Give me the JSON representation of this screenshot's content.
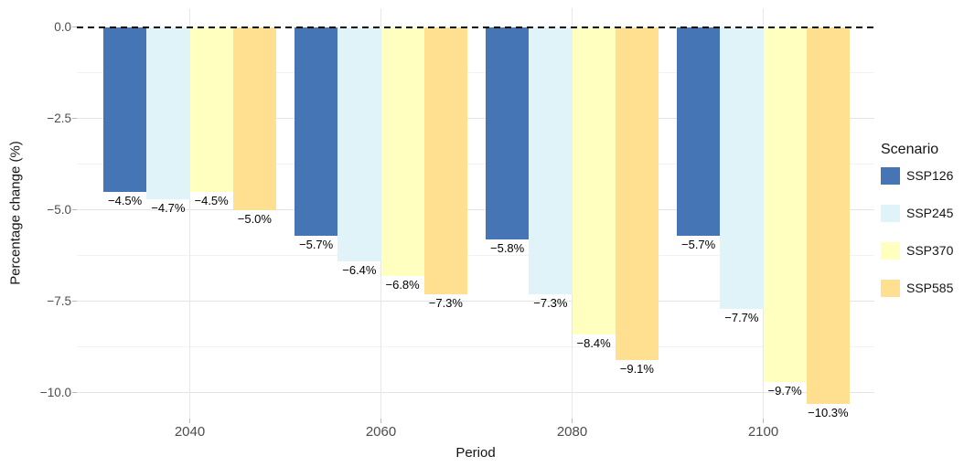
{
  "chart_data": {
    "type": "bar",
    "title": "",
    "xlabel": "Period",
    "ylabel": "Percentage change (%)",
    "categories": [
      "2040",
      "2060",
      "2080",
      "2100"
    ],
    "series": [
      {
        "name": "SSP126",
        "color": "#4575b4",
        "values": [
          -4.5,
          -5.7,
          -5.8,
          -5.7
        ],
        "labels": [
          "−4.5%",
          "−5.7%",
          "−5.8%",
          "−5.7%"
        ]
      },
      {
        "name": "SSP245",
        "color": "#e0f3f8",
        "values": [
          -4.7,
          -6.4,
          -7.3,
          -7.7
        ],
        "labels": [
          "−4.7%",
          "−6.4%",
          "−7.3%",
          "−7.7%"
        ]
      },
      {
        "name": "SSP370",
        "color": "#ffffbf",
        "values": [
          -4.5,
          -6.8,
          -8.4,
          -9.7
        ],
        "labels": [
          "−4.5%",
          "−6.8%",
          "−8.4%",
          "−9.7%"
        ]
      },
      {
        "name": "SSP585",
        "color": "#fee090",
        "values": [
          -5.0,
          -7.3,
          -9.1,
          -10.3
        ],
        "labels": [
          "−5.0%",
          "−7.3%",
          "−9.1%",
          "−10.3%"
        ]
      }
    ],
    "y_ticks": [
      0.0,
      -2.5,
      -5.0,
      -7.5,
      -10.0
    ],
    "y_tick_labels": [
      "0.0",
      "−2.5",
      "−5.0",
      "−7.5",
      "−10.0"
    ],
    "y_minor_ticks": [
      -1.25,
      -3.75,
      -6.25,
      -8.75
    ],
    "ylim": [
      0.5,
      -10.8
    ],
    "grid": true,
    "zero_line": {
      "style": "dashed",
      "color": "#000000"
    },
    "legend": {
      "title": "Scenario",
      "position": "right"
    }
  }
}
